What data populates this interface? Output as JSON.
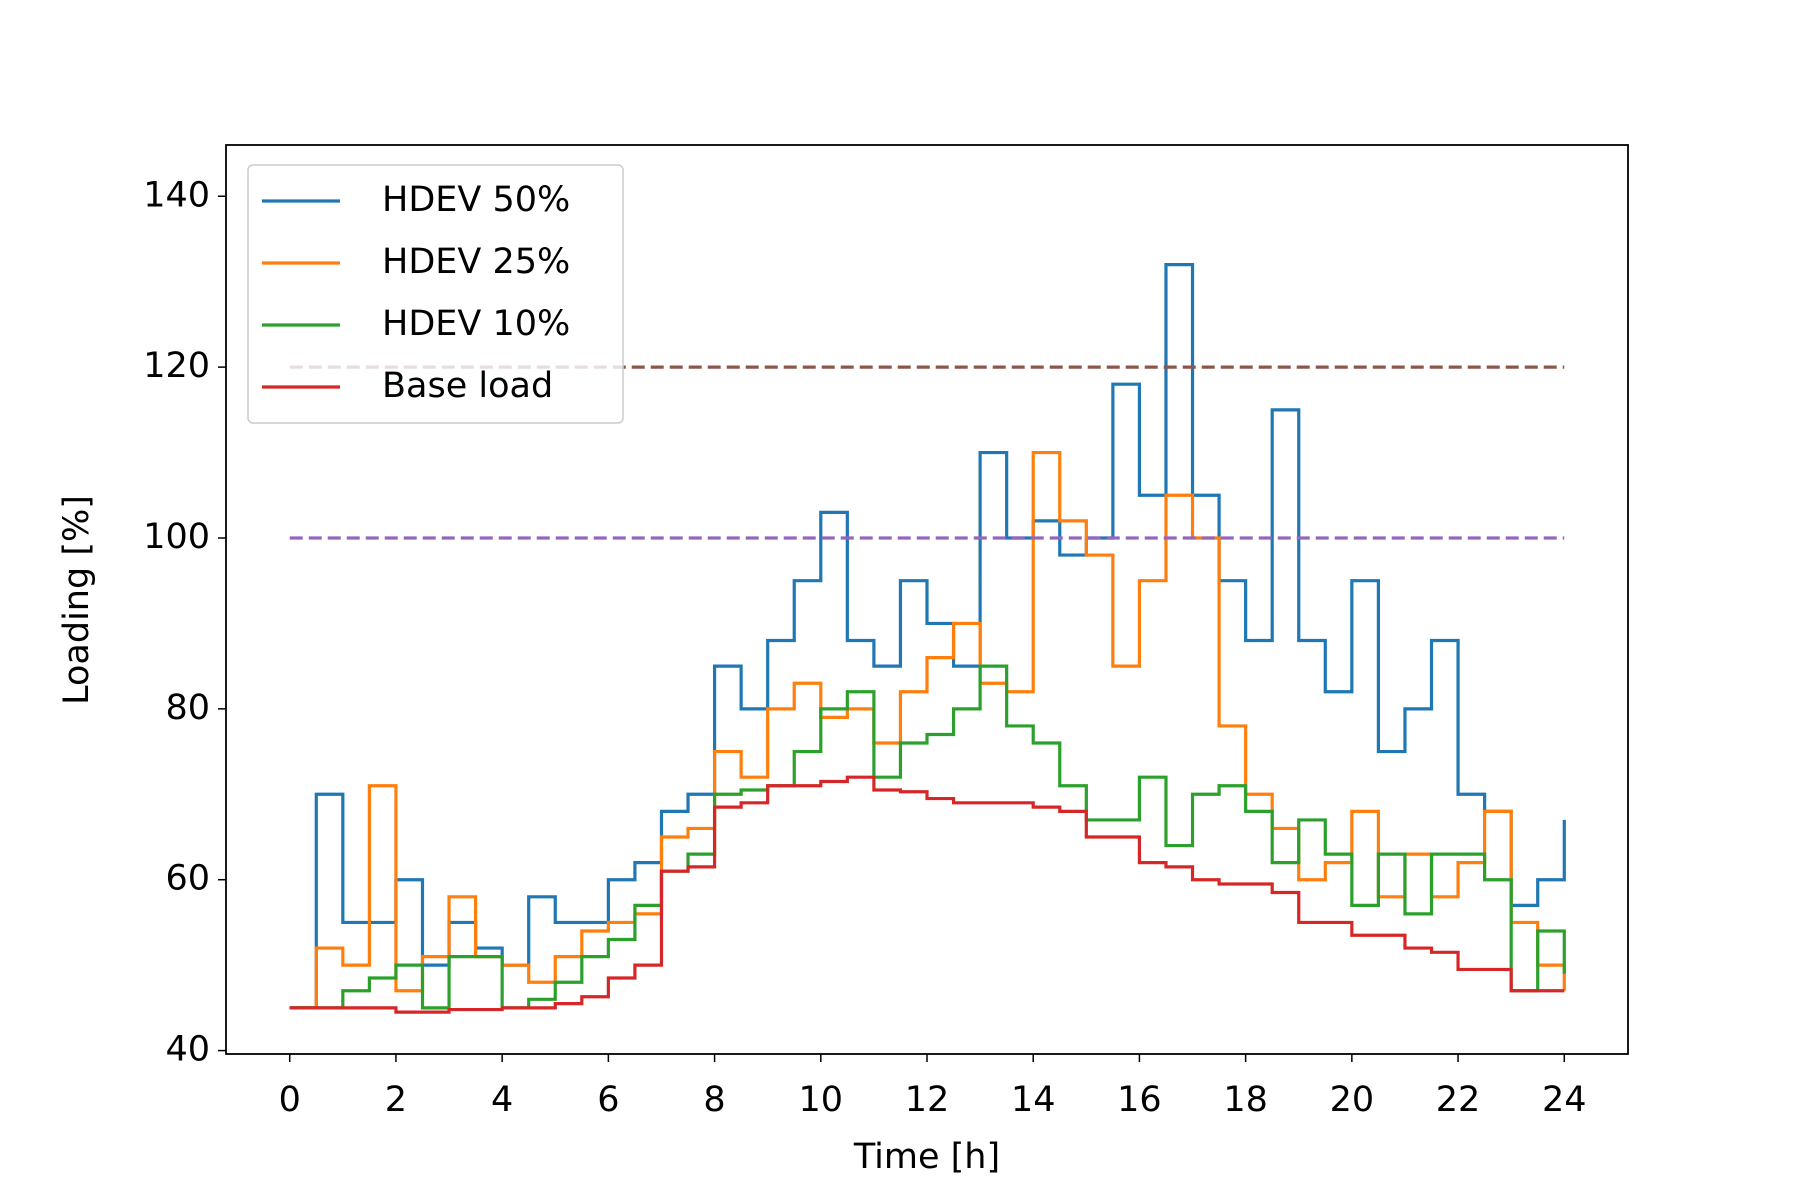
{
  "chart_data": {
    "type": "line",
    "drawstyle": "steps-post",
    "xlabel": "Time [h]",
    "ylabel": "Loading [%]",
    "x": [
      0,
      0.5,
      1,
      1.5,
      2,
      2.5,
      3,
      3.5,
      4,
      4.5,
      5,
      5.5,
      6,
      6.5,
      7,
      7.5,
      8,
      8.5,
      9,
      9.5,
      10,
      10.5,
      11,
      11.5,
      12,
      12.5,
      13,
      13.5,
      14,
      14.5,
      15,
      15.5,
      16,
      16.5,
      17,
      17.5,
      18,
      18.5,
      19,
      19.5,
      20,
      20.5,
      21,
      21.5,
      22,
      22.5,
      23,
      23.5,
      24
    ],
    "series": [
      {
        "name": "HDEV 50%",
        "color": "#1f77b4",
        "values": [
          45,
          70,
          55,
          55,
          60,
          50,
          55,
          52,
          50,
          58,
          55,
          55,
          60,
          62,
          68,
          70,
          85,
          80,
          88,
          95,
          103,
          88,
          85,
          95,
          90,
          85,
          110,
          100,
          102,
          98,
          100,
          118,
          105,
          132,
          105,
          95,
          88,
          115,
          88,
          82,
          95,
          75,
          80,
          88,
          70,
          68,
          57,
          60,
          67
        ]
      },
      {
        "name": "HDEV 25%",
        "color": "#ff7f0e",
        "values": [
          45,
          52,
          50,
          71,
          47,
          51,
          58,
          51,
          50,
          48,
          51,
          54,
          55,
          56,
          65,
          66,
          75,
          72,
          80,
          83,
          79,
          80,
          76,
          82,
          86,
          90,
          83,
          82,
          110,
          102,
          98,
          85,
          95,
          105,
          100,
          78,
          70,
          66,
          60,
          62,
          68,
          58,
          63,
          58,
          62,
          68,
          55,
          50,
          47
        ]
      },
      {
        "name": "HDEV 10%",
        "color": "#2ca02c",
        "values": [
          45,
          45,
          47,
          48.5,
          50,
          45,
          51,
          51,
          45,
          46,
          48,
          51,
          53,
          57,
          61,
          63,
          70,
          70.5,
          71,
          75,
          80,
          82,
          72,
          76,
          77,
          80,
          85,
          78,
          76,
          71,
          67,
          67,
          72,
          64,
          70,
          71,
          68,
          62,
          67,
          63,
          57,
          63,
          56,
          63,
          63,
          60,
          47,
          54,
          49
        ]
      },
      {
        "name": "Base load",
        "color": "#d62728",
        "values": [
          45,
          45,
          45,
          45,
          44.5,
          44.5,
          44.8,
          44.8,
          45,
          45,
          45.5,
          46.3,
          48.5,
          50,
          61,
          61.5,
          68.5,
          69,
          71,
          71,
          71.5,
          72,
          70.5,
          70.3,
          69.5,
          69,
          69,
          69,
          68.5,
          68,
          65,
          65,
          62,
          61.5,
          60,
          59.5,
          59.5,
          58.5,
          55,
          55,
          53.5,
          53.5,
          52,
          51.5,
          49.5,
          49.5,
          47,
          47,
          47
        ]
      }
    ],
    "reference_lines": [
      {
        "y": 100,
        "x": [
          0,
          24
        ],
        "color": "#9467bd"
      },
      {
        "y": 120,
        "x": [
          0,
          24
        ],
        "color": "#8c564b"
      }
    ],
    "xlim": [
      -1.2,
      25.2
    ],
    "ylim": [
      39.6,
      146
    ],
    "xticks": [
      0,
      2,
      4,
      6,
      8,
      10,
      12,
      14,
      16,
      18,
      20,
      22,
      24
    ],
    "yticks": [
      40,
      60,
      80,
      100,
      120,
      140
    ],
    "legend": "upper left"
  }
}
